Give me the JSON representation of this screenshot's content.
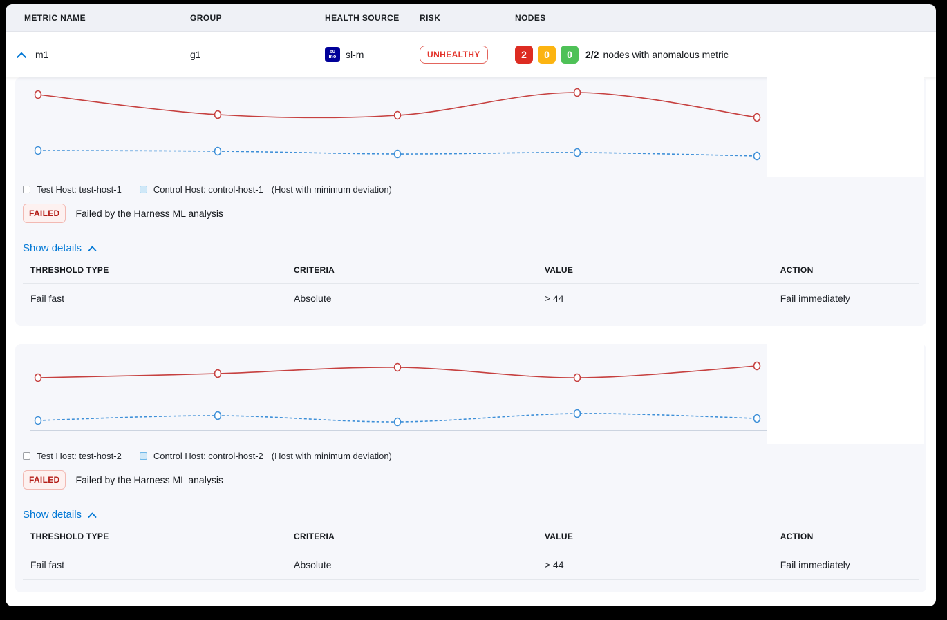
{
  "colors": {
    "accent_blue": "#0278d5",
    "test_line_red": "#c6403f",
    "control_line_blue": "#3d8fd8",
    "risk_red": "#e3342b",
    "failed_red": "#b41d17",
    "node_red": "#dd2c22",
    "node_amber": "#fcb411",
    "node_green": "#4ec157",
    "card_bg": "#f6f7fb",
    "header_bg": "#eff1f6"
  },
  "header": {
    "columns": [
      "METRIC NAME",
      "GROUP",
      "HEALTH SOURCE",
      "RISK",
      "NODES"
    ]
  },
  "metric_row": {
    "metric_name": "m1",
    "group": "g1",
    "health_source": {
      "icon": "sumo-logic-icon",
      "icon_line1": "su",
      "icon_line2": "mo",
      "label": "sl-m"
    },
    "risk_badge": "UNHEALTHY",
    "nodes": {
      "counts": [
        {
          "value": "2",
          "status": "unhealthy"
        },
        {
          "value": "0",
          "status": "warning"
        },
        {
          "value": "0",
          "status": "healthy"
        }
      ],
      "ratio": "2/2",
      "summary": "nodes with anomalous metric"
    }
  },
  "panels": [
    {
      "legend": {
        "test": "Test Host: test-host-1",
        "control": "Control Host: control-host-1",
        "note": "(Host with minimum deviation)"
      },
      "status": {
        "badge": "FAILED",
        "message": "Failed by the Harness ML analysis"
      },
      "details_toggle": "Show details",
      "table": {
        "columns": [
          "THRESHOLD TYPE",
          "CRITERIA",
          "VALUE",
          "ACTION"
        ],
        "rows": [
          [
            "Fail fast",
            "Absolute",
            "> 44",
            "Fail immediately"
          ]
        ]
      }
    },
    {
      "legend": {
        "test": "Test Host: test-host-2",
        "control": "Control Host: control-host-2",
        "note": "(Host with minimum deviation)"
      },
      "status": {
        "badge": "FAILED",
        "message": "Failed by the Harness ML analysis"
      },
      "details_toggle": "Show details",
      "table": {
        "columns": [
          "THRESHOLD TYPE",
          "CRITERIA",
          "VALUE",
          "ACTION"
        ],
        "rows": [
          [
            "Fail fast",
            "Absolute",
            "> 44",
            "Fail immediately"
          ]
        ]
      }
    }
  ],
  "chart_data": [
    {
      "type": "line",
      "x": [
        1,
        2,
        3,
        4,
        5
      ],
      "series": [
        {
          "name": "Test Host: test-host-1",
          "style": "solid",
          "color": "#c6403f",
          "values": [
            53,
            38.5,
            38,
            54.5,
            36.5
          ]
        },
        {
          "name": "Control Host: control-host-1",
          "style": "dashed",
          "color": "#3d8fd8",
          "values": [
            12.5,
            12,
            10,
            11,
            8.5
          ]
        }
      ],
      "ylim": [
        0,
        65
      ],
      "grid": false,
      "legend_position": "bottom"
    },
    {
      "type": "line",
      "x": [
        1,
        2,
        3,
        4,
        5
      ],
      "series": [
        {
          "name": "Test Host: test-host-2",
          "style": "solid",
          "color": "#c6403f",
          "values": [
            38,
            41,
            45.5,
            38,
            46.5
          ]
        },
        {
          "name": "Control Host: control-host-2",
          "style": "dashed",
          "color": "#3d8fd8",
          "values": [
            7,
            10.5,
            6,
            12,
            8.5
          ]
        }
      ],
      "ylim": [
        0,
        65
      ],
      "grid": false,
      "legend_position": "bottom"
    }
  ]
}
